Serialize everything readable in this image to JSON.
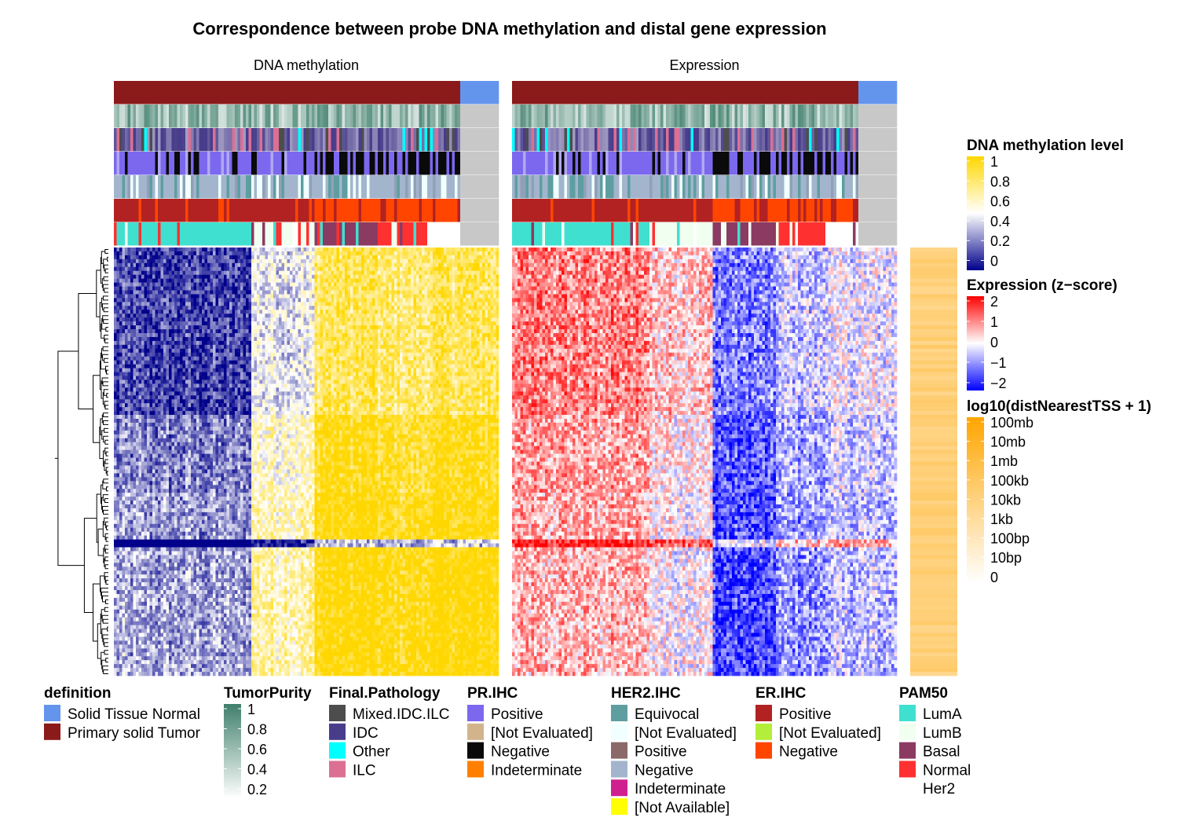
{
  "chart_data": {
    "type": "heatmap",
    "title": "Correspondence between probe DNA methylation and distal gene expression",
    "panels": [
      {
        "name": "DNA methylation",
        "kind": "methylation"
      },
      {
        "name": "Expression",
        "kind": "expression"
      }
    ],
    "sample_groups": [
      {
        "definition": "Primary solid Tumor",
        "fraction": 0.9
      },
      {
        "definition": "Solid Tissue Normal",
        "fraction": 0.1
      }
    ],
    "annotation_tracks": [
      "definition",
      "TumorPurity",
      "Final.Pathology",
      "PR.IHC",
      "HER2.IHC",
      "ER.IHC",
      "PAM50"
    ],
    "column_clusters": [
      {
        "pam50": "LumA",
        "fraction": 0.4,
        "methylation_level": 0.2,
        "expression_zscore": 0.8
      },
      {
        "pam50": "LumB",
        "fraction": 0.18,
        "methylation_level": 0.55,
        "expression_zscore": 0.3
      },
      {
        "pam50": "Basal",
        "fraction": 0.18,
        "methylation_level": 0.9,
        "expression_zscore": -1.2
      },
      {
        "pam50": "Normal",
        "fraction": 0.14,
        "methylation_level": 0.85,
        "expression_zscore": -0.6
      },
      {
        "pam50": "Her2",
        "fraction": 0.1,
        "methylation_level": 0.9,
        "expression_zscore": -0.3
      }
    ],
    "row_dendrogram": true,
    "row_annotation": {
      "name": "log10(distNearestTSS + 1)",
      "typical_value": "10kb"
    },
    "legends": {
      "methylation": {
        "title": "DNA methylation level",
        "ticks": [
          "1",
          "0.8",
          "0.6",
          "0.4",
          "0.2",
          "0"
        ],
        "colors": [
          "#ffd700",
          "#ffffff",
          "#00008b"
        ]
      },
      "expression": {
        "title": "Expression (z−score)",
        "ticks": [
          "2",
          "1",
          "0",
          "−1",
          "−2"
        ],
        "colors": [
          "#ff0000",
          "#ffffff",
          "#0000ff"
        ]
      },
      "distance": {
        "title": "log10(distNearestTSS + 1)",
        "ticks": [
          "100mb",
          "10mb",
          "1mb",
          "100kb",
          "10kb",
          "1kb",
          "100bp",
          "10bp",
          "0"
        ],
        "colors": [
          "#ffa500",
          "#ffffff"
        ]
      },
      "tumor_purity": {
        "title": "TumorPurity",
        "ticks": [
          "1",
          "0.8",
          "0.6",
          "0.4",
          "0.2"
        ],
        "colors": [
          "#3f7f6b",
          "#ffffff"
        ]
      },
      "categorical": [
        {
          "title": "definition",
          "items": [
            {
              "label": "Solid Tissue Normal",
              "color": "#6495ed"
            },
            {
              "label": "Primary solid Tumor",
              "color": "#8b1a1a"
            }
          ]
        },
        {
          "title": "Final.Pathology",
          "items": [
            {
              "label": "Mixed.IDC.ILC",
              "color": "#4d4d4d"
            },
            {
              "label": "IDC",
              "color": "#483d8b"
            },
            {
              "label": "Other",
              "color": "#00ffff"
            },
            {
              "label": "ILC",
              "color": "#db7093"
            }
          ]
        },
        {
          "title": "PR.IHC",
          "items": [
            {
              "label": "Positive",
              "color": "#7b68ee"
            },
            {
              "label": "[Not Evaluated]",
              "color": "#d2b48c"
            },
            {
              "label": "Negative",
              "color": "#0a0a0a"
            },
            {
              "label": "Indeterminate",
              "color": "#ff7f00"
            }
          ]
        },
        {
          "title": "HER2.IHC",
          "items": [
            {
              "label": "Equivocal",
              "color": "#5f9ea0"
            },
            {
              "label": "[Not Evaluated]",
              "color": "#f0ffff"
            },
            {
              "label": "Positive",
              "color": "#8b6969"
            },
            {
              "label": "Negative",
              "color": "#a2b5cd"
            },
            {
              "label": "Indeterminate",
              "color": "#d02090"
            },
            {
              "label": "[Not Available]",
              "color": "#ffff00"
            }
          ]
        },
        {
          "title": "ER.IHC",
          "items": [
            {
              "label": "Positive",
              "color": "#b22222"
            },
            {
              "label": "[Not Evaluated]",
              "color": "#b3ee3a"
            },
            {
              "label": "Negative",
              "color": "#ff4500"
            }
          ]
        },
        {
          "title": "PAM50",
          "items": [
            {
              "label": "LumA",
              "color": "#40e0d0"
            },
            {
              "label": "LumB",
              "color": "#f0fff0"
            },
            {
              "label": "Basal",
              "color": "#8b3a62"
            },
            {
              "label": "Normal",
              "color": "#ff3030"
            },
            {
              "label": "Her2",
              "color": "#ffffff"
            }
          ]
        }
      ]
    }
  }
}
